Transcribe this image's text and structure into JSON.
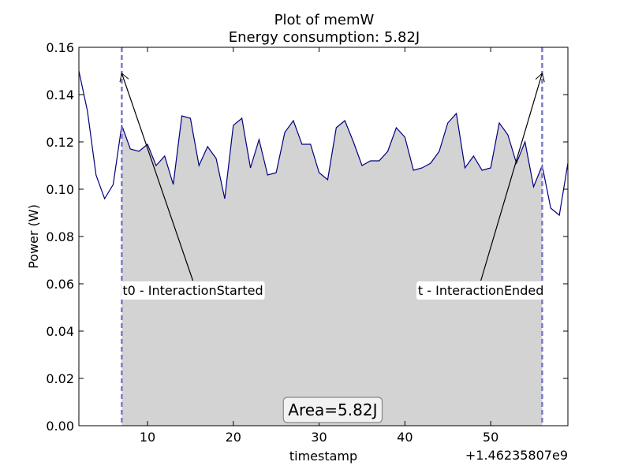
{
  "chart_data": {
    "type": "area",
    "title": "Plot of memW",
    "subtitle": "Energy consumption: 5.82J",
    "xlabel": "timestamp",
    "ylabel": "Power (W)",
    "x_offset_label": "+1.46235807e9",
    "xlim": [
      2,
      59
    ],
    "ylim": [
      0,
      0.16
    ],
    "xticks": [
      10,
      20,
      30,
      40,
      50
    ],
    "yticks": [
      0.0,
      0.02,
      0.04,
      0.06,
      0.08,
      0.1,
      0.12,
      0.14,
      0.16
    ],
    "ytick_labels": [
      "0.00",
      "0.02",
      "0.04",
      "0.06",
      "0.08",
      "0.10",
      "0.12",
      "0.14",
      "0.16"
    ],
    "series": [
      {
        "line_color": "#000080",
        "fill_color": "#d3d3d3",
        "x": [
          2,
          3,
          4,
          5,
          6,
          7,
          8,
          9,
          10,
          11,
          12,
          13,
          14,
          15,
          16,
          17,
          18,
          19,
          20,
          21,
          22,
          23,
          24,
          25,
          26,
          27,
          28,
          29,
          30,
          31,
          32,
          33,
          34,
          35,
          36,
          37,
          38,
          39,
          40,
          41,
          42,
          43,
          44,
          45,
          46,
          47,
          48,
          49,
          50,
          51,
          52,
          53,
          54,
          55,
          56,
          57,
          58,
          59
        ],
        "values": [
          0.15,
          0.133,
          0.106,
          0.096,
          0.102,
          0.127,
          0.117,
          0.116,
          0.119,
          0.11,
          0.114,
          0.102,
          0.131,
          0.13,
          0.11,
          0.118,
          0.113,
          0.096,
          0.127,
          0.13,
          0.109,
          0.121,
          0.106,
          0.107,
          0.124,
          0.129,
          0.119,
          0.119,
          0.107,
          0.104,
          0.126,
          0.129,
          0.12,
          0.11,
          0.112,
          0.112,
          0.116,
          0.126,
          0.122,
          0.108,
          0.109,
          0.111,
          0.116,
          0.128,
          0.132,
          0.109,
          0.114,
          0.108,
          0.109,
          0.128,
          0.123,
          0.111,
          0.12,
          0.101,
          0.11,
          0.092,
          0.089,
          0.111
        ]
      }
    ],
    "fill_range": [
      7,
      56
    ],
    "vlines": [
      {
        "x": 7,
        "color": "#7a7acc"
      },
      {
        "x": 56,
        "color": "#7a7acc"
      }
    ],
    "annotations": [
      {
        "text": "t0 - InteractionStarted",
        "arrow_to": {
          "x": 7,
          "y": 0.149
        },
        "text_at": {
          "x": 7,
          "y": 0.057
        }
      },
      {
        "text": "t - InteractionEnded",
        "arrow_to": {
          "x": 56,
          "y": 0.149
        },
        "text_at": {
          "x": 56,
          "y": 0.057
        }
      }
    ],
    "area_label": "Area=5.82J",
    "grid": false
  }
}
